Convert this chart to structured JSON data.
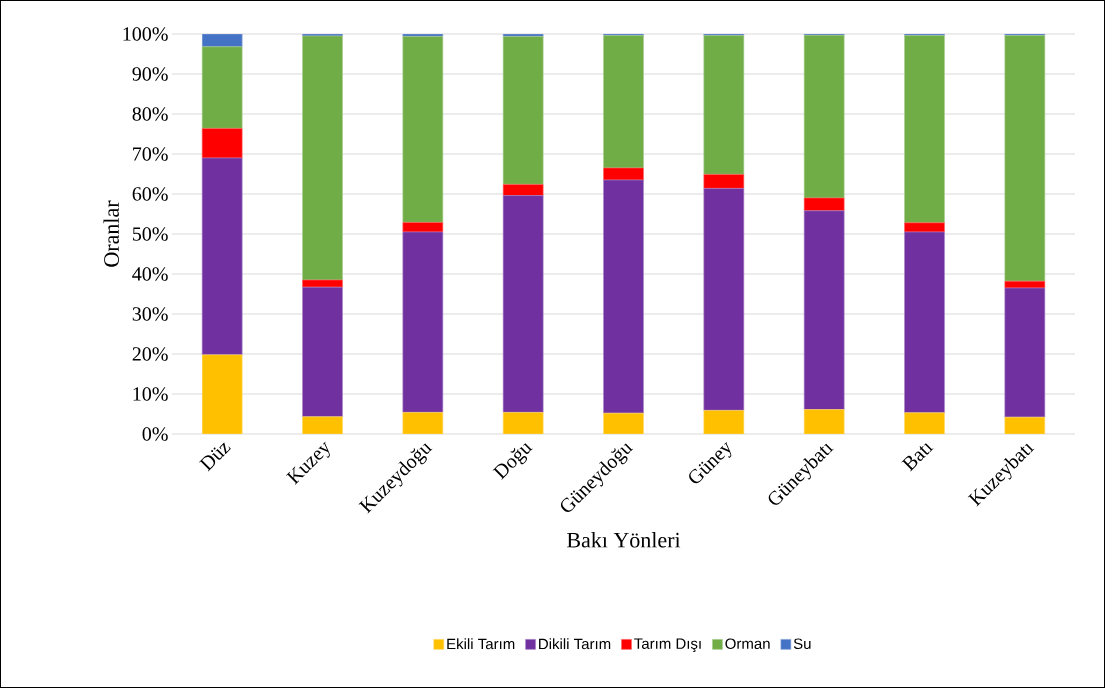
{
  "chart_data": {
    "type": "bar",
    "stacked": true,
    "xlabel": "Bakı Yönleri",
    "ylabel": "Oranlar",
    "categories": [
      "Düz",
      "Kuzey",
      "Kuzeydoğu",
      "Doğu",
      "Güneydoğu",
      "Güney",
      "Güneybatı",
      "Batı",
      "Kuzeybatı"
    ],
    "series": [
      {
        "name": "Ekili Tarım",
        "color": "#ffc000",
        "values": [
          19.8,
          4.3,
          5.4,
          5.4,
          5.2,
          5.9,
          6.1,
          5.3,
          4.2
        ]
      },
      {
        "name": "Dikili Tarım",
        "color": "#7030a0",
        "values": [
          49.2,
          32.4,
          45.1,
          54.2,
          58.3,
          55.5,
          49.7,
          45.2,
          32.3
        ]
      },
      {
        "name": "Tarım Dışı",
        "color": "#ff0000",
        "values": [
          7.4,
          1.8,
          2.4,
          2.8,
          3.0,
          3.5,
          3.2,
          2.3,
          1.7
        ]
      },
      {
        "name": "Orman",
        "color": "#70ad47",
        "values": [
          20.4,
          61.0,
          46.5,
          37.0,
          33.1,
          34.7,
          40.7,
          46.8,
          61.4
        ]
      },
      {
        "name": "Su",
        "color": "#4472c4",
        "values": [
          3.2,
          0.5,
          0.6,
          0.6,
          0.4,
          0.4,
          0.4,
          0.4,
          0.4
        ]
      }
    ],
    "ylim": [
      0,
      100
    ],
    "yticks": [
      {
        "value": 0,
        "label": "0%"
      },
      {
        "value": 10,
        "label": "10%"
      },
      {
        "value": 20,
        "label": "20%"
      },
      {
        "value": 30,
        "label": "30%"
      },
      {
        "value": 40,
        "label": "40%"
      },
      {
        "value": 50,
        "label": "50%"
      },
      {
        "value": 60,
        "label": "60%"
      },
      {
        "value": 70,
        "label": "70%"
      },
      {
        "value": 80,
        "label": "80%"
      },
      {
        "value": 90,
        "label": "90%"
      },
      {
        "value": 100,
        "label": "100%"
      }
    ],
    "grid": "y",
    "legend": "bottom"
  }
}
